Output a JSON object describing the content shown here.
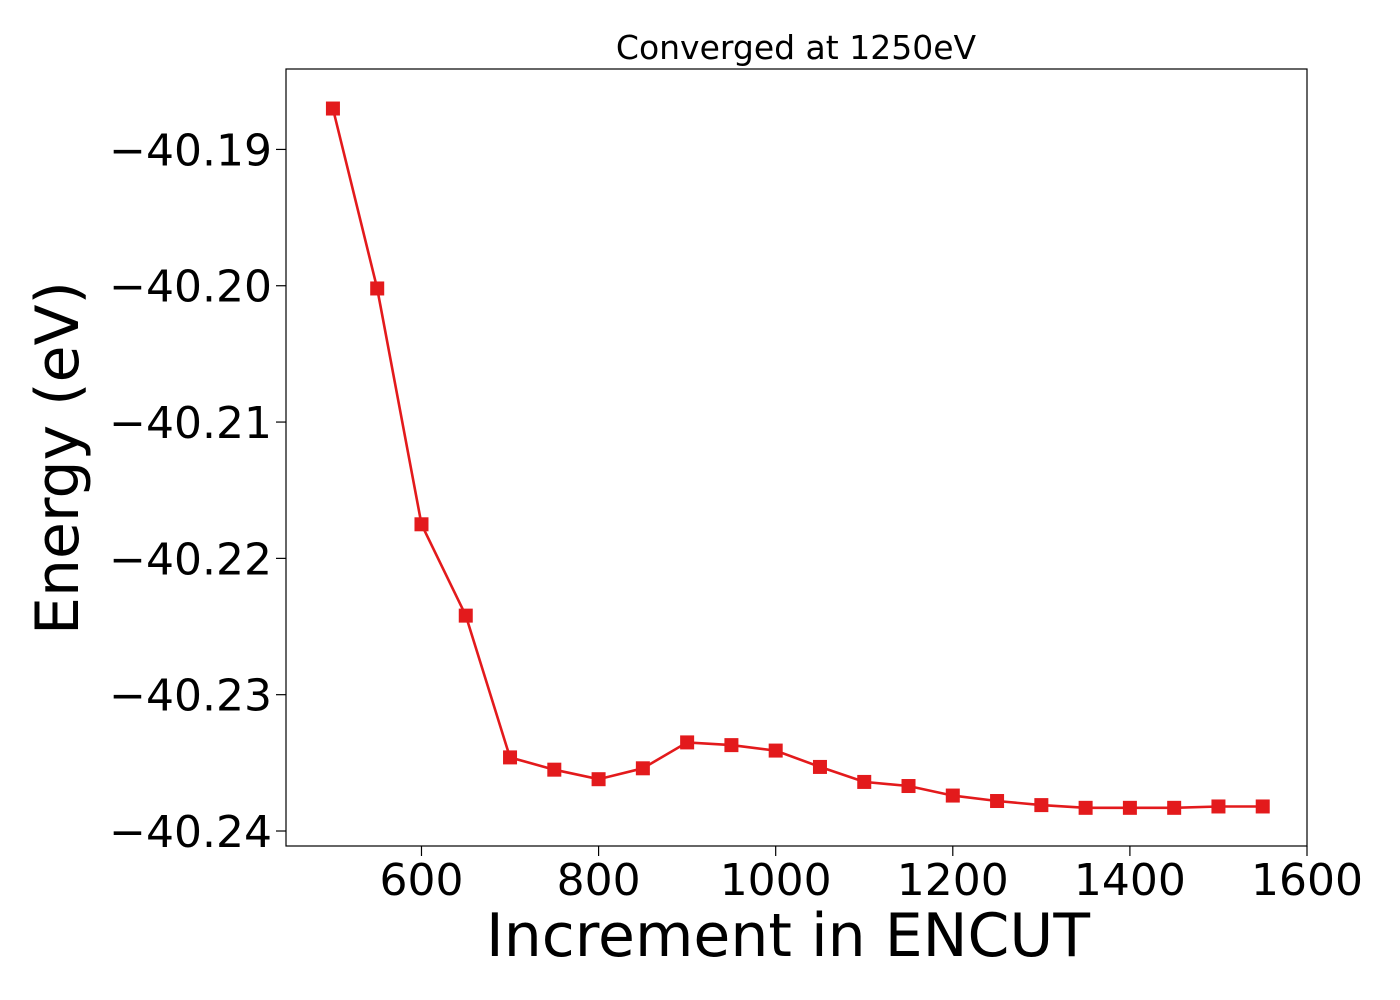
{
  "chart_data": {
    "type": "line",
    "title": "Converged at 1250eV",
    "xlabel": "Increment in ENCUT",
    "ylabel": "Energy (eV)",
    "xlim": [
      447,
      1600
    ],
    "ylim": [
      -40.2411,
      -40.1841
    ],
    "x_ticks": [
      600,
      800,
      1000,
      1200,
      1400,
      1600
    ],
    "y_ticks": [
      -40.19,
      -40.2,
      -40.21,
      -40.22,
      -40.23,
      -40.24
    ],
    "x_tick_labels": [
      "600",
      "800",
      "1000",
      "1200",
      "1400",
      "1600"
    ],
    "y_tick_labels": [
      "−40.19",
      "−40.20",
      "−40.21",
      "−40.22",
      "−40.23",
      "−40.24"
    ],
    "grid": false,
    "color": "#e31a1c",
    "marker": "square",
    "series": [
      {
        "x": [
          500,
          550,
          600,
          650,
          700,
          750,
          800,
          850,
          900,
          950,
          1000,
          1050,
          1100,
          1150,
          1200,
          1250,
          1300,
          1350,
          1400,
          1450,
          1500,
          1550
        ],
        "y": [
          -40.187,
          -40.2002,
          -40.2175,
          -40.2242,
          -40.2346,
          -40.2355,
          -40.2362,
          -40.2354,
          -40.2335,
          -40.2337,
          -40.2341,
          -40.2353,
          -40.2364,
          -40.2367,
          -40.2374,
          -40.2378,
          -40.2381,
          -40.2383,
          -40.2383,
          -40.2383,
          -40.2382,
          -40.2382
        ]
      }
    ]
  }
}
